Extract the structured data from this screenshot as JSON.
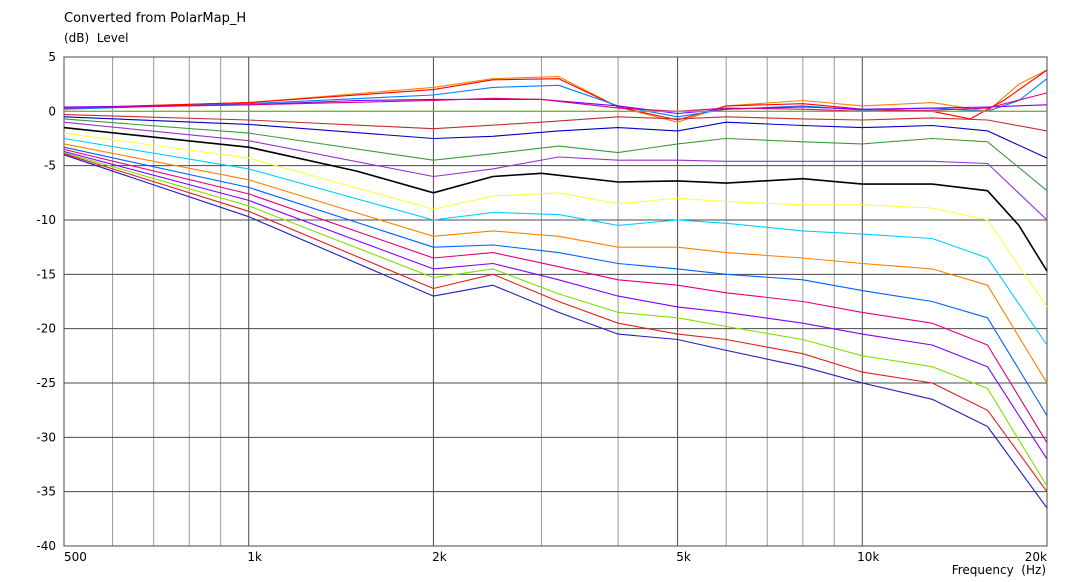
{
  "chart_data": {
    "type": "line",
    "title": "Converted from PolarMap_H",
    "ylabel": "(dB)  Level",
    "xlabel": "Frequency  (Hz)",
    "x_scale": "log",
    "xlim": [
      500,
      20000
    ],
    "ylim": [
      -40,
      5
    ],
    "grid": true,
    "x_major_ticks": [
      {
        "value": 500,
        "label": "500"
      },
      {
        "value": 1000,
        "label": "1k"
      },
      {
        "value": 2000,
        "label": "2k"
      },
      {
        "value": 5000,
        "label": "5k"
      },
      {
        "value": 10000,
        "label": "10k"
      },
      {
        "value": 20000,
        "label": "20k"
      }
    ],
    "x_minor_grid": [
      600,
      700,
      800,
      900,
      3000,
      4000,
      6000,
      7000,
      8000,
      9000
    ],
    "y_ticks": [
      5,
      0,
      -5,
      -10,
      -15,
      -20,
      -25,
      -30,
      -35,
      -40
    ],
    "series": [
      {
        "color": "#ff8000",
        "points": [
          [
            500,
            0.3
          ],
          [
            1000,
            0.8
          ],
          [
            2000,
            2.2
          ],
          [
            2500,
            3
          ],
          [
            3200,
            3.2
          ],
          [
            4000,
            0.4
          ],
          [
            5000,
            -1
          ],
          [
            6000,
            0.5
          ],
          [
            8000,
            1
          ],
          [
            10000,
            0.5
          ],
          [
            13000,
            0.8
          ],
          [
            16000,
            0
          ],
          [
            18000,
            2.5
          ],
          [
            20000,
            3.8
          ]
        ]
      },
      {
        "color": "#ff0000",
        "points": [
          [
            500,
            0.3
          ],
          [
            1000,
            0.8
          ],
          [
            2000,
            2
          ],
          [
            2500,
            2.9
          ],
          [
            3200,
            3
          ],
          [
            4000,
            0.4
          ],
          [
            5000,
            -0.8
          ],
          [
            6000,
            0.5
          ],
          [
            8000,
            0.7
          ],
          [
            10000,
            0.2
          ],
          [
            13000,
            0
          ],
          [
            15000,
            -0.7
          ],
          [
            17000,
            1
          ],
          [
            20000,
            3.8
          ]
        ]
      },
      {
        "color": "#0080ff",
        "points": [
          [
            500,
            0.2
          ],
          [
            1000,
            0.7
          ],
          [
            2000,
            1.5
          ],
          [
            2500,
            2.2
          ],
          [
            3200,
            2.4
          ],
          [
            4000,
            0.5
          ],
          [
            5000,
            -0.5
          ],
          [
            6000,
            0.2
          ],
          [
            8000,
            0.5
          ],
          [
            10000,
            0.1
          ],
          [
            13000,
            0.3
          ],
          [
            16000,
            0
          ],
          [
            18000,
            1
          ],
          [
            20000,
            3
          ]
        ]
      },
      {
        "color": "#8000ff",
        "points": [
          [
            500,
            0.4
          ],
          [
            1000,
            0.6
          ],
          [
            1500,
            1
          ],
          [
            2000,
            1.1
          ],
          [
            3000,
            1.1
          ],
          [
            4000,
            0.5
          ],
          [
            5000,
            -0.2
          ],
          [
            6000,
            0.2
          ],
          [
            8000,
            0.4
          ],
          [
            10000,
            0.2
          ],
          [
            13000,
            0.3
          ],
          [
            16000,
            0.4
          ],
          [
            20000,
            0.6
          ]
        ]
      },
      {
        "color": "#e0007f",
        "points": [
          [
            500,
            0.3
          ],
          [
            1000,
            0.6
          ],
          [
            2000,
            1
          ],
          [
            2500,
            1.2
          ],
          [
            3000,
            1.1
          ],
          [
            4000,
            0.3
          ],
          [
            5000,
            0
          ],
          [
            6000,
            0.3
          ],
          [
            8000,
            0.2
          ],
          [
            10000,
            0
          ],
          [
            13000,
            0.1
          ],
          [
            16000,
            0.3
          ],
          [
            20000,
            1.7
          ]
        ]
      },
      {
        "color": "#80c000",
        "points": [
          [
            500,
            0
          ],
          [
            1000,
            0
          ],
          [
            2000,
            0
          ],
          [
            5000,
            0
          ],
          [
            10000,
            0
          ],
          [
            20000,
            0
          ]
        ]
      },
      {
        "color": "#c03030",
        "points": [
          [
            500,
            -0.3
          ],
          [
            1000,
            -0.8
          ],
          [
            2000,
            -1.6
          ],
          [
            3000,
            -1
          ],
          [
            4000,
            -0.5
          ],
          [
            5000,
            -0.7
          ],
          [
            6000,
            -0.5
          ],
          [
            8000,
            -0.7
          ],
          [
            10000,
            -0.8
          ],
          [
            13000,
            -0.6
          ],
          [
            16000,
            -0.8
          ],
          [
            20000,
            -1.8
          ]
        ]
      },
      {
        "color": "#0000c0",
        "points": [
          [
            500,
            -0.5
          ],
          [
            1000,
            -1.2
          ],
          [
            2000,
            -2.5
          ],
          [
            2500,
            -2.3
          ],
          [
            3200,
            -1.8
          ],
          [
            4000,
            -1.5
          ],
          [
            5000,
            -1.8
          ],
          [
            6000,
            -1
          ],
          [
            8000,
            -1.3
          ],
          [
            10000,
            -1.5
          ],
          [
            13000,
            -1.3
          ],
          [
            16000,
            -1.8
          ],
          [
            20000,
            -4.3
          ]
        ]
      },
      {
        "color": "#3c9a3c",
        "points": [
          [
            500,
            -0.7
          ],
          [
            1000,
            -2
          ],
          [
            2000,
            -4.5
          ],
          [
            2500,
            -3.9
          ],
          [
            3200,
            -3.2
          ],
          [
            4000,
            -3.8
          ],
          [
            5000,
            -3
          ],
          [
            6000,
            -2.5
          ],
          [
            8000,
            -2.8
          ],
          [
            10000,
            -3
          ],
          [
            13000,
            -2.5
          ],
          [
            16000,
            -2.8
          ],
          [
            20000,
            -7.3
          ]
        ]
      },
      {
        "color": "#9933cc",
        "points": [
          [
            500,
            -1
          ],
          [
            1000,
            -2.7
          ],
          [
            2000,
            -6
          ],
          [
            2500,
            -5.3
          ],
          [
            3200,
            -4.2
          ],
          [
            4000,
            -4.5
          ],
          [
            5000,
            -4.5
          ],
          [
            6000,
            -4.6
          ],
          [
            8000,
            -4.6
          ],
          [
            10000,
            -4.6
          ],
          [
            13000,
            -4.6
          ],
          [
            16000,
            -4.8
          ],
          [
            20000,
            -10
          ]
        ]
      },
      {
        "color": "#000000",
        "points": [
          [
            500,
            -1.5
          ],
          [
            1000,
            -3.3
          ],
          [
            1500,
            -5.5
          ],
          [
            2000,
            -7.5
          ],
          [
            2500,
            -6
          ],
          [
            3000,
            -5.7
          ],
          [
            4000,
            -6.5
          ],
          [
            5000,
            -6.4
          ],
          [
            6000,
            -6.6
          ],
          [
            8000,
            -6.2
          ],
          [
            10000,
            -6.7
          ],
          [
            13000,
            -6.7
          ],
          [
            16000,
            -7.3
          ],
          [
            18000,
            -10.5
          ],
          [
            20000,
            -14.7
          ]
        ]
      },
      {
        "color": "#ffff40",
        "points": [
          [
            500,
            -2
          ],
          [
            1000,
            -4.3
          ],
          [
            2000,
            -9
          ],
          [
            2500,
            -7.8
          ],
          [
            3200,
            -7.5
          ],
          [
            4000,
            -8.5
          ],
          [
            5000,
            -8
          ],
          [
            6000,
            -8.3
          ],
          [
            8000,
            -8.6
          ],
          [
            10000,
            -8.6
          ],
          [
            13000,
            -8.9
          ],
          [
            16000,
            -10
          ],
          [
            20000,
            -18
          ]
        ]
      },
      {
        "color": "#00d0ff",
        "points": [
          [
            500,
            -2.5
          ],
          [
            1000,
            -5.3
          ],
          [
            2000,
            -10
          ],
          [
            2500,
            -9.3
          ],
          [
            3200,
            -9.5
          ],
          [
            4000,
            -10.5
          ],
          [
            5000,
            -10
          ],
          [
            6000,
            -10.3
          ],
          [
            8000,
            -11
          ],
          [
            10000,
            -11.3
          ],
          [
            13000,
            -11.7
          ],
          [
            16000,
            -13.5
          ],
          [
            20000,
            -21.5
          ]
        ]
      },
      {
        "color": "#ff8000",
        "points": [
          [
            500,
            -3
          ],
          [
            1000,
            -6.3
          ],
          [
            2000,
            -11.5
          ],
          [
            2500,
            -11
          ],
          [
            3200,
            -11.5
          ],
          [
            4000,
            -12.5
          ],
          [
            5000,
            -12.5
          ],
          [
            6000,
            -13
          ],
          [
            8000,
            -13.5
          ],
          [
            10000,
            -14
          ],
          [
            13000,
            -14.5
          ],
          [
            16000,
            -16
          ],
          [
            20000,
            -25
          ]
        ]
      },
      {
        "color": "#0060ff",
        "points": [
          [
            500,
            -3.3
          ],
          [
            1000,
            -7
          ],
          [
            2000,
            -12.5
          ],
          [
            2500,
            -12.3
          ],
          [
            3200,
            -13
          ],
          [
            4000,
            -14
          ],
          [
            5000,
            -14.5
          ],
          [
            6000,
            -15
          ],
          [
            8000,
            -15.5
          ],
          [
            10000,
            -16.5
          ],
          [
            13000,
            -17.5
          ],
          [
            16000,
            -19
          ],
          [
            20000,
            -28
          ]
        ]
      },
      {
        "color": "#e0007f",
        "points": [
          [
            500,
            -3.5
          ],
          [
            1000,
            -7.6
          ],
          [
            2000,
            -13.5
          ],
          [
            2500,
            -13
          ],
          [
            3200,
            -14.3
          ],
          [
            4000,
            -15.5
          ],
          [
            5000,
            -16
          ],
          [
            6000,
            -16.7
          ],
          [
            8000,
            -17.5
          ],
          [
            10000,
            -18.5
          ],
          [
            13000,
            -19.5
          ],
          [
            16000,
            -21.5
          ],
          [
            20000,
            -30.5
          ]
        ]
      },
      {
        "color": "#8000ff",
        "points": [
          [
            500,
            -3.7
          ],
          [
            1000,
            -8.2
          ],
          [
            2000,
            -14.5
          ],
          [
            2500,
            -14
          ],
          [
            3200,
            -15.5
          ],
          [
            4000,
            -17
          ],
          [
            5000,
            -18
          ],
          [
            6000,
            -18.5
          ],
          [
            8000,
            -19.5
          ],
          [
            10000,
            -20.5
          ],
          [
            13000,
            -21.5
          ],
          [
            16000,
            -23.5
          ],
          [
            20000,
            -32
          ]
        ]
      },
      {
        "color": "#80e000",
        "points": [
          [
            500,
            -3.8
          ],
          [
            1000,
            -8.7
          ],
          [
            2000,
            -15.3
          ],
          [
            2500,
            -14.5
          ],
          [
            3200,
            -16.8
          ],
          [
            4000,
            -18.5
          ],
          [
            5000,
            -19
          ],
          [
            6000,
            -19.8
          ],
          [
            8000,
            -21
          ],
          [
            10000,
            -22.5
          ],
          [
            13000,
            -23.5
          ],
          [
            16000,
            -25.5
          ],
          [
            20000,
            -34.5
          ]
        ]
      },
      {
        "color": "#e02020",
        "points": [
          [
            500,
            -3.9
          ],
          [
            1000,
            -9.2
          ],
          [
            2000,
            -16.3
          ],
          [
            2500,
            -15
          ],
          [
            3200,
            -17.5
          ],
          [
            4000,
            -19.5
          ],
          [
            5000,
            -20.5
          ],
          [
            6000,
            -21
          ],
          [
            8000,
            -22.3
          ],
          [
            10000,
            -24
          ],
          [
            13000,
            -25
          ],
          [
            16000,
            -27.5
          ],
          [
            20000,
            -35
          ]
        ]
      },
      {
        "color": "#2020c0",
        "points": [
          [
            500,
            -4
          ],
          [
            1000,
            -9.7
          ],
          [
            2000,
            -17
          ],
          [
            2500,
            -16
          ],
          [
            3200,
            -18.5
          ],
          [
            4000,
            -20.5
          ],
          [
            5000,
            -21
          ],
          [
            6000,
            -22
          ],
          [
            8000,
            -23.5
          ],
          [
            10000,
            -25
          ],
          [
            13000,
            -26.5
          ],
          [
            16000,
            -29
          ],
          [
            20000,
            -36.5
          ]
        ]
      }
    ]
  }
}
